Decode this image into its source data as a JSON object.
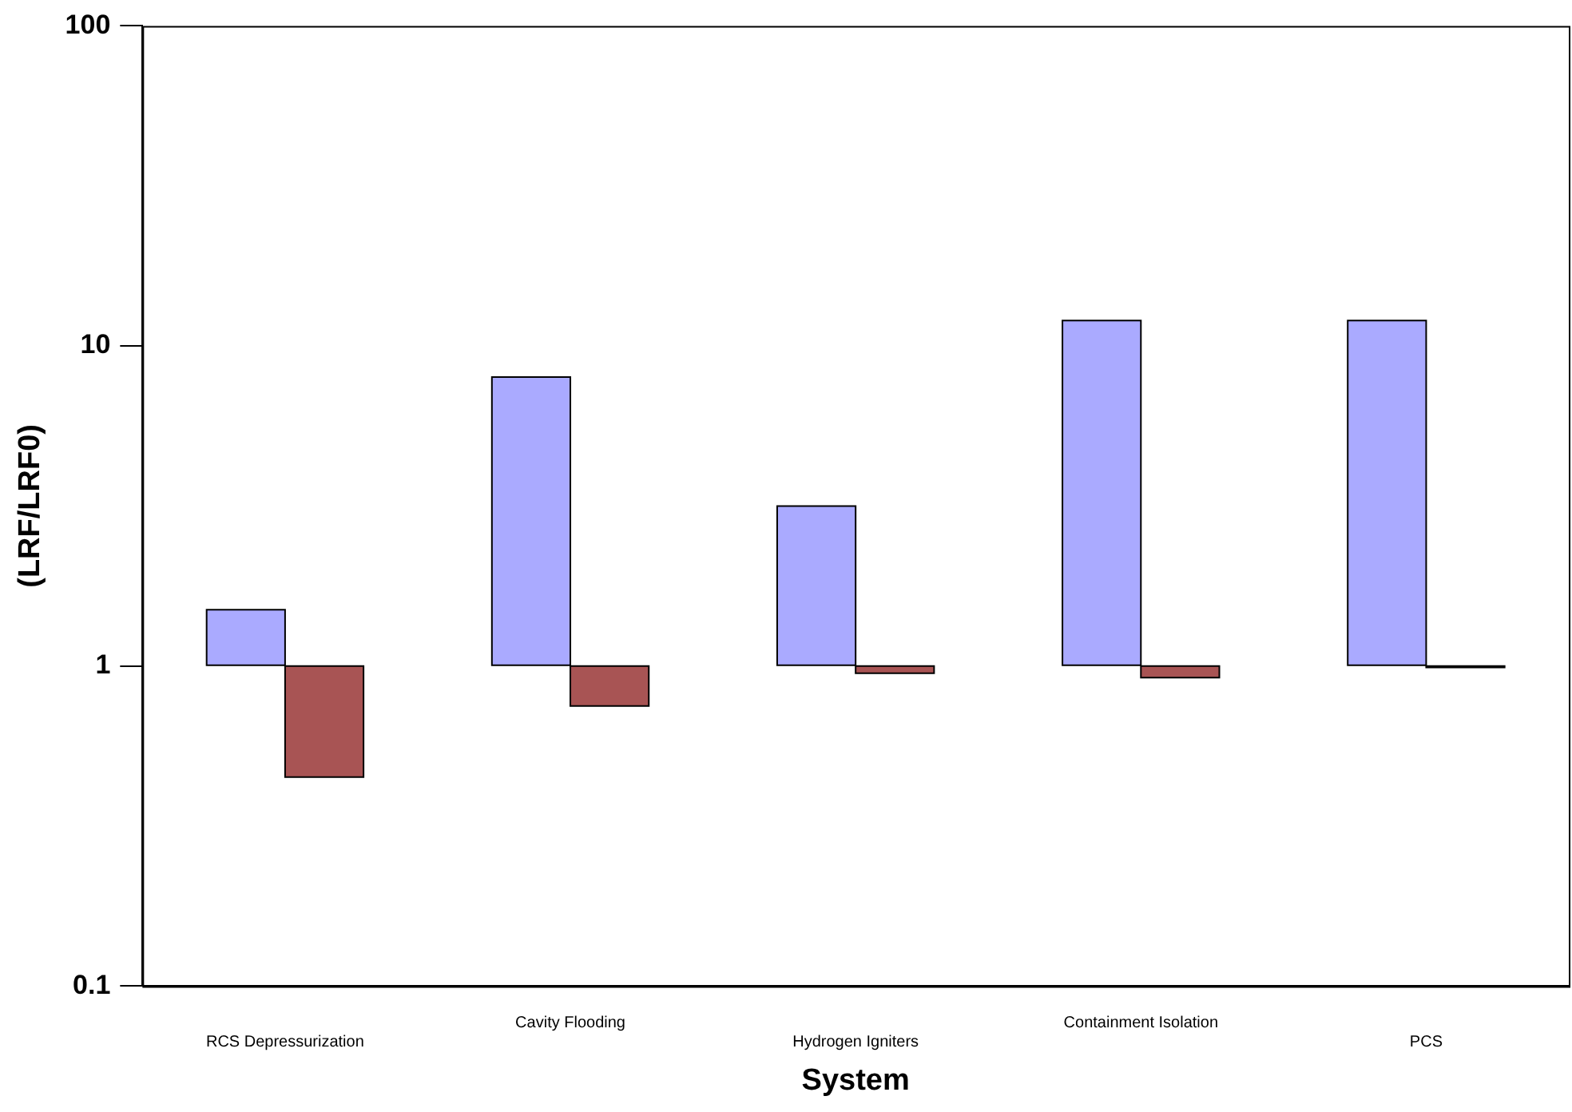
{
  "chart_data": {
    "type": "bar",
    "xlabel": "System",
    "ylabel": "(LRF/LRF0)",
    "categories": [
      "RCS Depressurization",
      "Cavity Flooding",
      "Hydrogen Igniters",
      "Containment Isolation",
      "PCS"
    ],
    "series": [
      {
        "color": "#aaaaff",
        "values": [
          0.5,
          7,
          2.16,
          11,
          11
        ],
        "base": [
          1,
          1,
          1,
          1,
          1
        ]
      },
      {
        "color": "#a85454",
        "values": [
          -0.55,
          -0.25,
          -0.05,
          -0.08,
          -0.01
        ],
        "base": [
          1,
          1,
          1,
          1,
          1
        ]
      }
    ],
    "log": "y",
    "ylim": [
      0.1,
      100
    ],
    "yticks": [
      0.1,
      1,
      10,
      100
    ],
    "grid": false,
    "legend": false
  }
}
